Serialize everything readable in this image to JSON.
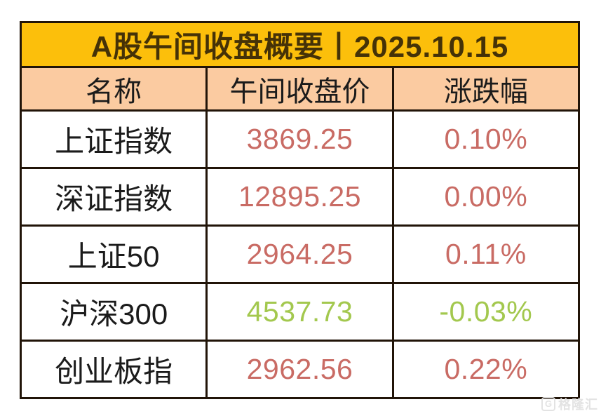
{
  "colors": {
    "title_bg": "#fcbf0b",
    "header_bg": "#fbcba1",
    "border": "#211408",
    "title_text": "#453207",
    "name_text": "#1b1b1b",
    "up": "#c96b64",
    "down": "#a3c84e"
  },
  "table": {
    "title": "A股午间收盘概要丨2025.10.15",
    "columns": [
      "名称",
      "午间收盘价",
      "涨跌幅"
    ],
    "rows": [
      {
        "name": "上证指数",
        "price": "3869.25",
        "change": "0.10%",
        "direction": "up"
      },
      {
        "name": "深证指数",
        "price": "12895.25",
        "change": "0.00%",
        "direction": "up"
      },
      {
        "name": "上证50",
        "price": "2964.25",
        "change": "0.11%",
        "direction": "up"
      },
      {
        "name": "沪深300",
        "price": "4537.73",
        "change": "-0.03%",
        "direction": "down"
      },
      {
        "name": "创业板指",
        "price": "2962.56",
        "change": "0.22%",
        "direction": "up"
      }
    ]
  },
  "watermark": {
    "logo": "G",
    "label": "格隆汇"
  },
  "chart_data": {
    "type": "table",
    "title": "A股午间收盘概要丨2025.10.15",
    "columns": [
      "名称",
      "午间收盘价",
      "涨跌幅"
    ],
    "rows": [
      [
        "上证指数",
        3869.25,
        "0.10%"
      ],
      [
        "深证指数",
        12895.25,
        "0.00%"
      ],
      [
        "上证50",
        2964.25,
        "0.11%"
      ],
      [
        "沪深300",
        4537.73,
        "-0.03%"
      ],
      [
        "创业板指",
        2962.56,
        "0.22%"
      ]
    ]
  }
}
